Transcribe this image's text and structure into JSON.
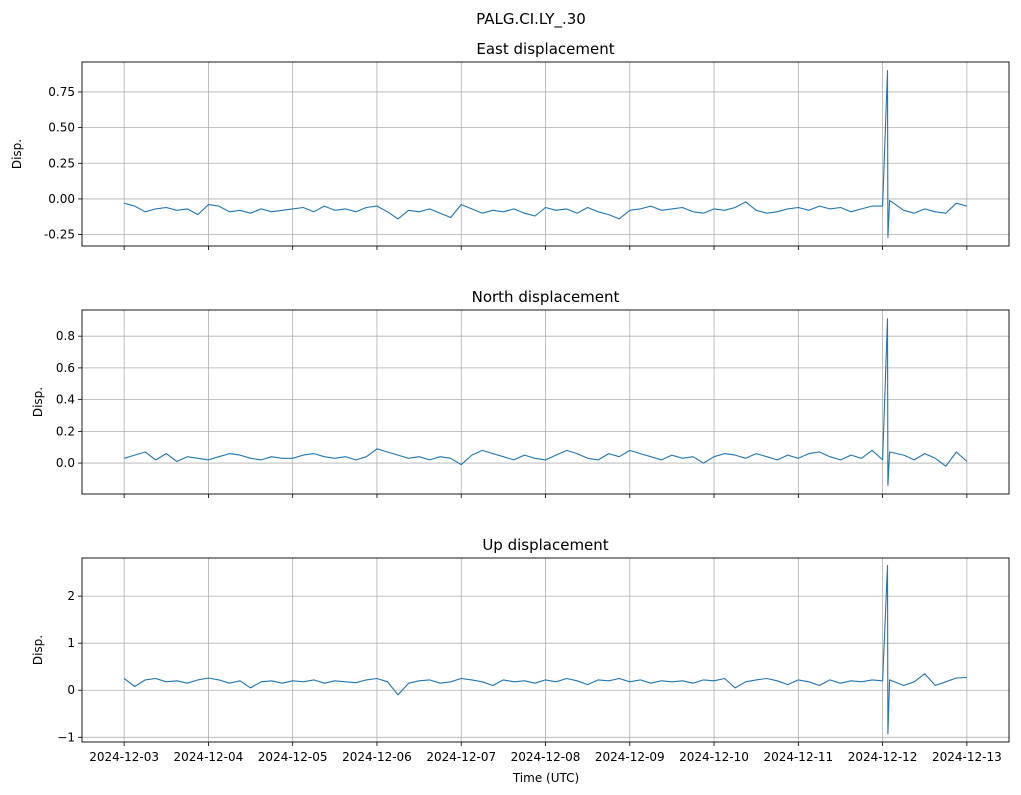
{
  "figure_title": "PALG.CI.LY_.30",
  "xlabel": "Time (UTC)",
  "line_color": "#1f77b4",
  "grid_color": "#b0b0b0",
  "xlim": [
    "2024-12-02 12:00",
    "2024-12-13 12:00"
  ],
  "xticks": [
    "2024-12-03",
    "2024-12-04",
    "2024-12-05",
    "2024-12-06",
    "2024-12-07",
    "2024-12-08",
    "2024-12-09",
    "2024-12-10",
    "2024-12-11",
    "2024-12-12",
    "2024-12-13"
  ],
  "time": [
    "2024-12-03 00:00",
    "2024-12-03 03:00",
    "2024-12-03 06:00",
    "2024-12-03 09:00",
    "2024-12-03 12:00",
    "2024-12-03 15:00",
    "2024-12-03 18:00",
    "2024-12-03 21:00",
    "2024-12-04 00:00",
    "2024-12-04 03:00",
    "2024-12-04 06:00",
    "2024-12-04 09:00",
    "2024-12-04 12:00",
    "2024-12-04 15:00",
    "2024-12-04 18:00",
    "2024-12-04 21:00",
    "2024-12-05 00:00",
    "2024-12-05 03:00",
    "2024-12-05 06:00",
    "2024-12-05 09:00",
    "2024-12-05 12:00",
    "2024-12-05 15:00",
    "2024-12-05 18:00",
    "2024-12-05 21:00",
    "2024-12-06 00:00",
    "2024-12-06 03:00",
    "2024-12-06 06:00",
    "2024-12-06 09:00",
    "2024-12-06 12:00",
    "2024-12-06 15:00",
    "2024-12-06 18:00",
    "2024-12-06 21:00",
    "2024-12-07 00:00",
    "2024-12-07 03:00",
    "2024-12-07 06:00",
    "2024-12-07 09:00",
    "2024-12-07 12:00",
    "2024-12-07 15:00",
    "2024-12-07 18:00",
    "2024-12-07 21:00",
    "2024-12-08 00:00",
    "2024-12-08 03:00",
    "2024-12-08 06:00",
    "2024-12-08 09:00",
    "2024-12-08 12:00",
    "2024-12-08 15:00",
    "2024-12-08 18:00",
    "2024-12-08 21:00",
    "2024-12-09 00:00",
    "2024-12-09 03:00",
    "2024-12-09 06:00",
    "2024-12-09 09:00",
    "2024-12-09 12:00",
    "2024-12-09 15:00",
    "2024-12-09 18:00",
    "2024-12-09 21:00",
    "2024-12-10 00:00",
    "2024-12-10 03:00",
    "2024-12-10 06:00",
    "2024-12-10 09:00",
    "2024-12-10 12:00",
    "2024-12-10 15:00",
    "2024-12-10 18:00",
    "2024-12-10 21:00",
    "2024-12-11 00:00",
    "2024-12-11 03:00",
    "2024-12-11 06:00",
    "2024-12-11 09:00",
    "2024-12-11 12:00",
    "2024-12-11 15:00",
    "2024-12-11 18:00",
    "2024-12-11 21:00",
    "2024-12-12 00:00",
    "2024-12-12 01:24",
    "2024-12-12 01:30",
    "2024-12-12 02:00",
    "2024-12-12 06:00",
    "2024-12-12 09:00",
    "2024-12-12 12:00",
    "2024-12-12 15:00",
    "2024-12-12 18:00",
    "2024-12-12 21:00",
    "2024-12-13 00:00"
  ],
  "chart_data": [
    {
      "type": "line",
      "title": "East displacement",
      "ylabel": "Disp.",
      "ylim": [
        -0.33,
        0.96
      ],
      "yticks": [
        "-0.25",
        "0.00",
        "0.25",
        "0.50",
        "0.75"
      ],
      "grid": true,
      "y": [
        -0.03,
        -0.05,
        -0.09,
        -0.07,
        -0.06,
        -0.08,
        -0.07,
        -0.11,
        -0.04,
        -0.05,
        -0.09,
        -0.08,
        -0.1,
        -0.07,
        -0.09,
        -0.08,
        -0.07,
        -0.06,
        -0.09,
        -0.05,
        -0.08,
        -0.07,
        -0.09,
        -0.06,
        -0.05,
        -0.09,
        -0.14,
        -0.08,
        -0.09,
        -0.07,
        -0.1,
        -0.13,
        -0.04,
        -0.07,
        -0.1,
        -0.08,
        -0.09,
        -0.07,
        -0.1,
        -0.12,
        -0.06,
        -0.08,
        -0.07,
        -0.1,
        -0.06,
        -0.09,
        -0.11,
        -0.14,
        -0.08,
        -0.07,
        -0.05,
        -0.08,
        -0.07,
        -0.06,
        -0.09,
        -0.1,
        -0.07,
        -0.08,
        -0.06,
        -0.02,
        -0.08,
        -0.1,
        -0.09,
        -0.07,
        -0.06,
        -0.08,
        -0.05,
        -0.07,
        -0.06,
        -0.09,
        -0.07,
        -0.05,
        -0.05,
        0.9,
        -0.27,
        -0.01,
        -0.08,
        -0.1,
        -0.07,
        -0.09,
        -0.1,
        -0.03,
        -0.05
      ]
    },
    {
      "type": "line",
      "title": "North displacement",
      "ylabel": "Disp.",
      "ylim": [
        -0.195,
        0.965
      ],
      "yticks": [
        "0.0",
        "0.2",
        "0.4",
        "0.6",
        "0.8"
      ],
      "grid": true,
      "y": [
        0.03,
        0.05,
        0.07,
        0.02,
        0.06,
        0.01,
        0.04,
        0.03,
        0.02,
        0.04,
        0.06,
        0.05,
        0.03,
        0.02,
        0.04,
        0.03,
        0.03,
        0.05,
        0.06,
        0.04,
        0.03,
        0.04,
        0.02,
        0.04,
        0.09,
        0.07,
        0.05,
        0.03,
        0.04,
        0.02,
        0.04,
        0.03,
        -0.01,
        0.05,
        0.08,
        0.06,
        0.04,
        0.02,
        0.05,
        0.03,
        0.02,
        0.05,
        0.08,
        0.06,
        0.03,
        0.02,
        0.06,
        0.04,
        0.08,
        0.06,
        0.04,
        0.02,
        0.05,
        0.03,
        0.04,
        0.0,
        0.04,
        0.06,
        0.05,
        0.03,
        0.06,
        0.04,
        0.02,
        0.05,
        0.03,
        0.06,
        0.07,
        0.04,
        0.02,
        0.05,
        0.03,
        0.08,
        0.02,
        0.91,
        -0.14,
        0.07,
        0.05,
        0.02,
        0.06,
        0.03,
        -0.02,
        0.07,
        0.01
      ]
    },
    {
      "type": "line",
      "title": "Up displacement",
      "ylabel": "Disp.",
      "ylim": [
        -1.1,
        2.81
      ],
      "yticks": [
        "−1",
        "0",
        "1",
        "2"
      ],
      "grid": true,
      "y": [
        0.25,
        0.08,
        0.22,
        0.25,
        0.18,
        0.2,
        0.15,
        0.22,
        0.26,
        0.22,
        0.15,
        0.2,
        0.05,
        0.18,
        0.2,
        0.15,
        0.2,
        0.18,
        0.22,
        0.15,
        0.2,
        0.18,
        0.16,
        0.22,
        0.25,
        0.18,
        -0.1,
        0.15,
        0.2,
        0.22,
        0.15,
        0.18,
        0.25,
        0.22,
        0.18,
        0.1,
        0.22,
        0.18,
        0.2,
        0.15,
        0.22,
        0.18,
        0.25,
        0.2,
        0.12,
        0.22,
        0.2,
        0.25,
        0.18,
        0.22,
        0.15,
        0.2,
        0.18,
        0.2,
        0.15,
        0.22,
        0.2,
        0.25,
        0.05,
        0.18,
        0.22,
        0.25,
        0.2,
        0.12,
        0.22,
        0.18,
        0.1,
        0.22,
        0.15,
        0.2,
        0.18,
        0.22,
        0.2,
        2.65,
        -0.93,
        0.22,
        0.1,
        0.18,
        0.35,
        0.1,
        0.18,
        0.26,
        0.27
      ]
    }
  ]
}
